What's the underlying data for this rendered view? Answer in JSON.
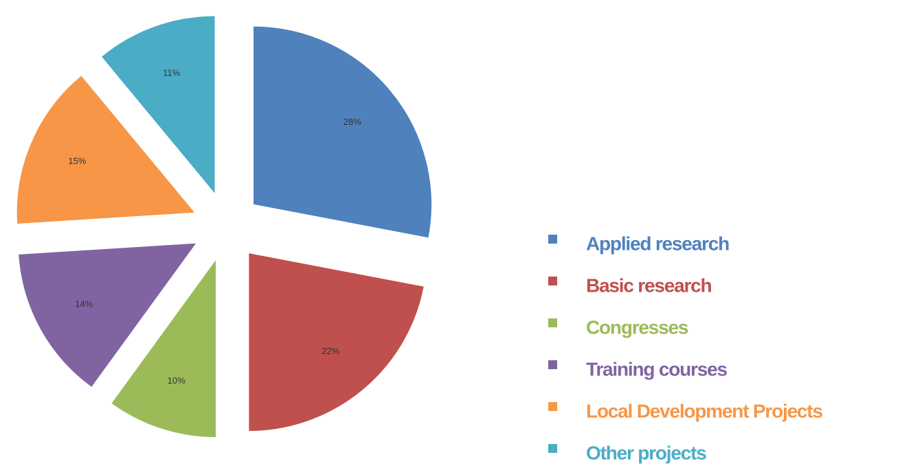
{
  "chart_data": {
    "type": "pie",
    "categories": [
      "Applied research",
      "Basic research",
      "Congresses",
      "Training courses",
      "Local Development Projects",
      "Other projects"
    ],
    "values": [
      28,
      22,
      10,
      14,
      15,
      11
    ],
    "value_labels": [
      "28%",
      "22%",
      "10%",
      "14%",
      "15%",
      "11%"
    ],
    "colors": [
      "#4f81bd",
      "#c0504d",
      "#9bbb59",
      "#8064a2",
      "#f79646",
      "#4bacc6"
    ],
    "exploded": true,
    "legend": "right"
  }
}
